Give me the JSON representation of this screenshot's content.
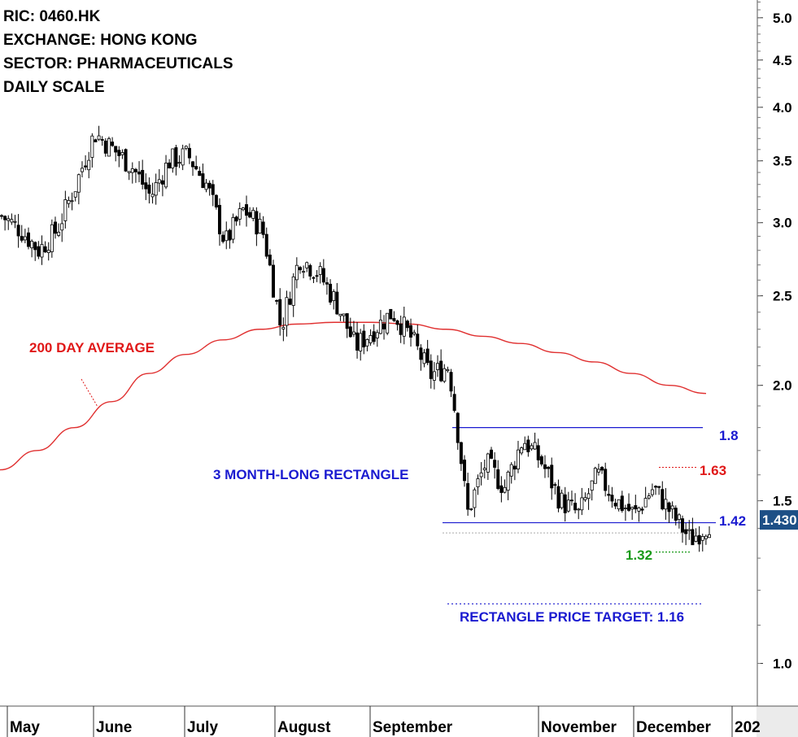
{
  "header": {
    "ric": "RIC: 0460.HK",
    "exchange": "EXCHANGE: HONG KONG",
    "sector": "SECTOR: PHARMACEUTICALS",
    "scale": "DAILY SCALE"
  },
  "annotations": {
    "ma_label": "200 DAY AVERAGE",
    "rect_label": "3 MONTH-LONG RECTANGLE",
    "target_label": "RECTANGLE PRICE TARGET: 1.16",
    "resistance_value": "1.8",
    "high_value": "1.63",
    "support_value": "1.42",
    "low_value": "1.32",
    "last_price": "1.430"
  },
  "colors": {
    "ma_line": "#e03030",
    "rectangle_line": "#1a1ad0",
    "red_text": "#e01818",
    "blue_text": "#1a1ad0",
    "green_text": "#1a9a1a",
    "last_price_bg": "#1d4f86",
    "axis_panel": "#ebebeb"
  },
  "chart_data": {
    "type": "candlestick",
    "y_scale": "log",
    "ylim": [
      0.9,
      5.6
    ],
    "y_ticks": [
      "5.0",
      "4.5",
      "4.0",
      "3.5",
      "3.0",
      "2.5",
      "2.0",
      "1.5",
      "1.0"
    ],
    "x_labels": [
      "May",
      "June",
      "July",
      "August",
      "September",
      "November",
      "December",
      "202"
    ],
    "lines": {
      "rectangle_top": 1.8,
      "rectangle_bottom": 1.42,
      "recent_high": 1.63,
      "recent_low": 1.32,
      "price_target": 1.16,
      "last": 1.43
    },
    "moving_average_200": [
      1.62,
      1.7,
      1.8,
      1.92,
      2.06,
      2.16,
      2.24,
      2.3,
      2.33,
      2.34,
      2.34,
      2.33,
      2.3,
      2.26,
      2.22,
      2.17,
      2.12,
      2.06,
      2.0,
      1.96
    ],
    "price_path": [
      3.05,
      2.95,
      2.8,
      2.95,
      3.3,
      3.75,
      3.6,
      3.45,
      3.2,
      3.5,
      3.55,
      3.3,
      2.85,
      3.1,
      2.95,
      2.3,
      2.75,
      2.65,
      2.45,
      2.2,
      2.3,
      2.4,
      2.25,
      2.05,
      2.1,
      1.45,
      1.65,
      1.55,
      1.75,
      1.65,
      1.5,
      1.45,
      1.6,
      1.5,
      1.45,
      1.55,
      1.45,
      1.36,
      1.42
    ]
  }
}
